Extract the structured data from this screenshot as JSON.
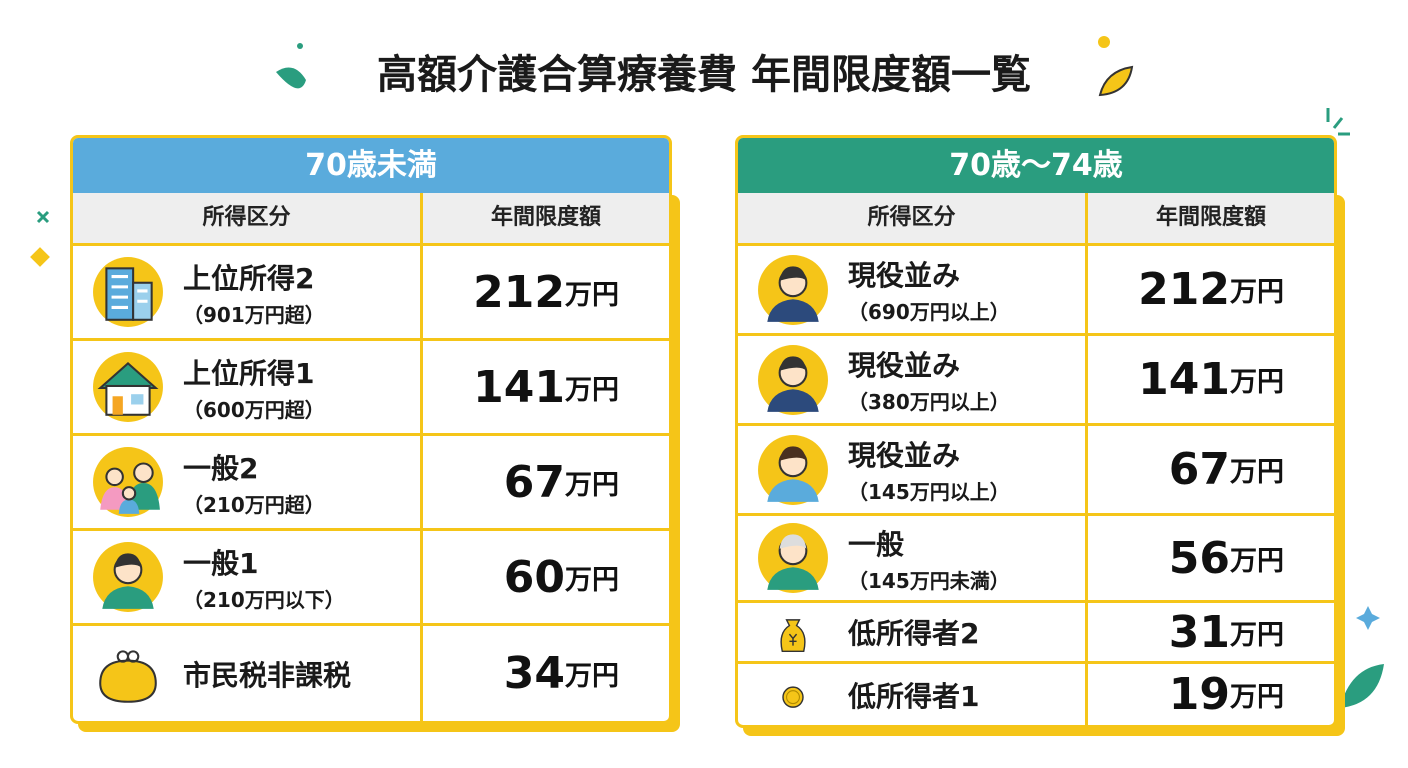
{
  "title": "高額介護合算療養費 年間限度額一覧",
  "tables": [
    {
      "header": "70歳未満",
      "columns": [
        "所得区分",
        "年間限度額"
      ],
      "rows": [
        {
          "label": [
            "上位所得2",
            "（901万円超）"
          ],
          "amount": 212,
          "unit": "万円"
        },
        {
          "label": [
            "上位所得1",
            "（600万円超）"
          ],
          "amount": 141,
          "unit": "万円"
        },
        {
          "label": [
            "一般2",
            "（210万円超）"
          ],
          "amount": 67,
          "unit": "万円"
        },
        {
          "label": [
            "一般1",
            "（210万円以下）"
          ],
          "amount": 60,
          "unit": "万円"
        },
        {
          "label": [
            "市民税非課税"
          ],
          "amount": 34,
          "unit": "万円"
        }
      ]
    },
    {
      "header": "70歳～74歳",
      "columns": [
        "所得区分",
        "年間限度額"
      ],
      "rows": [
        {
          "label": [
            "現役並み",
            "（690万円以上）"
          ],
          "amount": 212,
          "unit": "万円"
        },
        {
          "label": [
            "現役並み",
            "（380万円以上）"
          ],
          "amount": 141,
          "unit": "万円"
        },
        {
          "label": [
            "現役並み",
            "（145万円以上）"
          ],
          "amount": 67,
          "unit": "万円"
        },
        {
          "label": [
            "一般",
            "（145万円未満）"
          ],
          "amount": 56,
          "unit": "万円"
        },
        {
          "label": [
            "低所得者2"
          ],
          "amount": 31,
          "unit": "万円"
        },
        {
          "label": [
            "低所得者1"
          ],
          "amount": 19,
          "unit": "万円"
        }
      ]
    }
  ]
}
